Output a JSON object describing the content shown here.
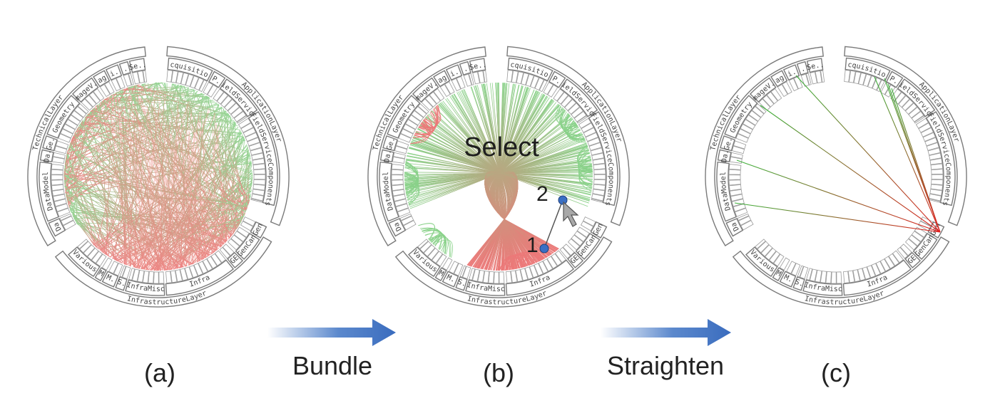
{
  "captions": {
    "a": "(a)",
    "b": "(b)",
    "c": "(c)"
  },
  "arrows": {
    "bundle": "Bundle",
    "straighten": "Straighten"
  },
  "annotations": {
    "select": "Select",
    "point1": "1",
    "point2": "2"
  },
  "outer_layers": [
    {
      "id": "technical",
      "label": "TechnicalLayer"
    },
    {
      "id": "application",
      "label": "ApplicationLayer"
    },
    {
      "id": "infrastructure",
      "label": "InfrastructureLayer"
    }
  ],
  "inner_groups": [
    {
      "id": "acquisition",
      "label": "Acquisition"
    },
    {
      "id": "ep",
      "label": "EP.."
    },
    {
      "id": "fieldservice",
      "label": "FieldService"
    },
    {
      "id": "fieldservicecomponents",
      "label": "FieldServiceComponents"
    },
    {
      "id": "gen",
      "label": "Gen"
    },
    {
      "id": "gencan",
      "label": "GenCan"
    },
    {
      "id": "ge",
      "label": "GE"
    },
    {
      "id": "infra",
      "label": "Infra"
    },
    {
      "id": "inframisc",
      "label": "InfraMisc"
    },
    {
      "id": "sv",
      "label": "S."
    },
    {
      "id": "pm",
      "label": "PM.."
    },
    {
      "id": "m",
      "label": "M"
    },
    {
      "id": "various",
      "label": "Various"
    },
    {
      "id": "da",
      "label": "Da"
    },
    {
      "id": "datamodel",
      "label": "DataModel"
    },
    {
      "id": "da2",
      "label": "Da."
    },
    {
      "id": "ge2",
      "label": "Ge."
    },
    {
      "id": "geometry",
      "label": "Geometry"
    },
    {
      "id": "imagev",
      "label": "ImageV.."
    },
    {
      "id": "imag",
      "label": "Imag.."
    },
    {
      "id": "mi",
      "label": "Mi.."
    },
    {
      "id": "ijs",
      "label": "I.S"
    },
    {
      "id": "se",
      "label": "Se.."
    }
  ],
  "colors": {
    "edge_start": "#3cb43c",
    "edge_end": "#e02020",
    "arrow": "#3f74c4",
    "cursor": "#9a9a9a",
    "point": "#3a6fc4"
  }
}
